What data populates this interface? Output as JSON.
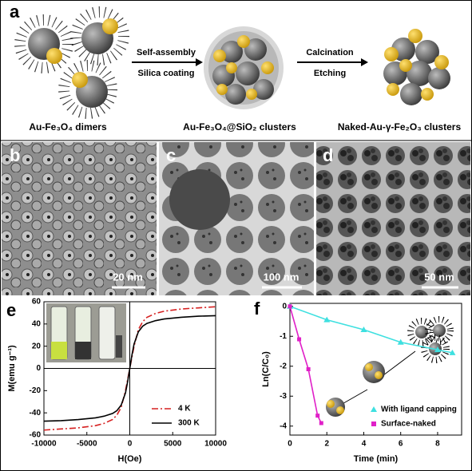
{
  "schematic": {
    "label": "a",
    "steps": [
      {
        "top": "Self-assembly",
        "bottom": "Silica coating"
      },
      {
        "top": "Calcination",
        "bottom": "Etching"
      }
    ],
    "captions": [
      "Au-Fe₃O₄ dimers",
      "Au-Fe₃O₄@SiO₂ clusters",
      "Naked-Au-γ-Fe₂O₃ clusters"
    ]
  },
  "micrographs": [
    {
      "label": "b",
      "scale_bar": "20 nm"
    },
    {
      "label": "c",
      "scale_bar": "100 nm"
    },
    {
      "label": "d",
      "scale_bar": "50 nm"
    }
  ],
  "chart_data": [
    {
      "type": "line",
      "panel_label": "e",
      "xlabel": "H(Oe)",
      "ylabel": "M(emu g⁻¹)",
      "x": [
        -10000,
        -8000,
        -6000,
        -4000,
        -3000,
        -2000,
        -1500,
        -1000,
        -500,
        -250,
        0,
        250,
        500,
        1000,
        1500,
        2000,
        3000,
        4000,
        6000,
        8000,
        10000
      ],
      "series": [
        {
          "name": "4 K",
          "color": "#d62020",
          "dash": "dashdot",
          "values": [
            -55.5,
            -54.5,
            -53.5,
            -51.5,
            -49.5,
            -46,
            -42,
            -35,
            -20,
            -10,
            0,
            10,
            20,
            35,
            42,
            46,
            49.5,
            51.5,
            53.5,
            54.5,
            55.5
          ]
        },
        {
          "name": "300 K",
          "color": "#000000",
          "dash": "solid",
          "values": [
            -47.5,
            -47,
            -46,
            -44.5,
            -43,
            -40.5,
            -38,
            -33,
            -22,
            -12,
            0,
            12,
            22,
            33,
            38,
            40.5,
            43,
            44.5,
            46,
            47,
            47.5
          ]
        }
      ],
      "xlim": [
        -10000,
        10000
      ],
      "ylim": [
        -60,
        60
      ],
      "xticks": [
        -10000,
        -5000,
        0,
        5000,
        10000
      ],
      "yticks": [
        -60,
        -40,
        -20,
        0,
        20,
        40,
        60
      ],
      "legend": "lower right"
    },
    {
      "type": "scatter",
      "panel_label": "f",
      "xlabel": "Time (min)",
      "ylabel": "Ln(C/C₀)",
      "series": [
        {
          "name": "With ligand capping",
          "color": "#3ee0e0",
          "marker": "triangle",
          "x": [
            0,
            2,
            4,
            6,
            8,
            8.8
          ],
          "values": [
            0,
            -0.45,
            -0.78,
            -1.2,
            -1.45,
            -1.55
          ]
        },
        {
          "name": "Surface-naked",
          "color": "#e020c8",
          "marker": "square",
          "x": [
            0,
            0.5,
            1,
            1.5,
            1.7
          ],
          "values": [
            0,
            -1.1,
            -2.1,
            -3.65,
            -3.9
          ]
        }
      ],
      "xlim": [
        0,
        9.3
      ],
      "ylim": [
        -4.3,
        0.1
      ],
      "xticks": [
        0,
        2,
        4,
        6,
        8
      ],
      "yticks": [
        0,
        -1,
        -2,
        -3,
        -4
      ],
      "legend": "lower right"
    }
  ]
}
